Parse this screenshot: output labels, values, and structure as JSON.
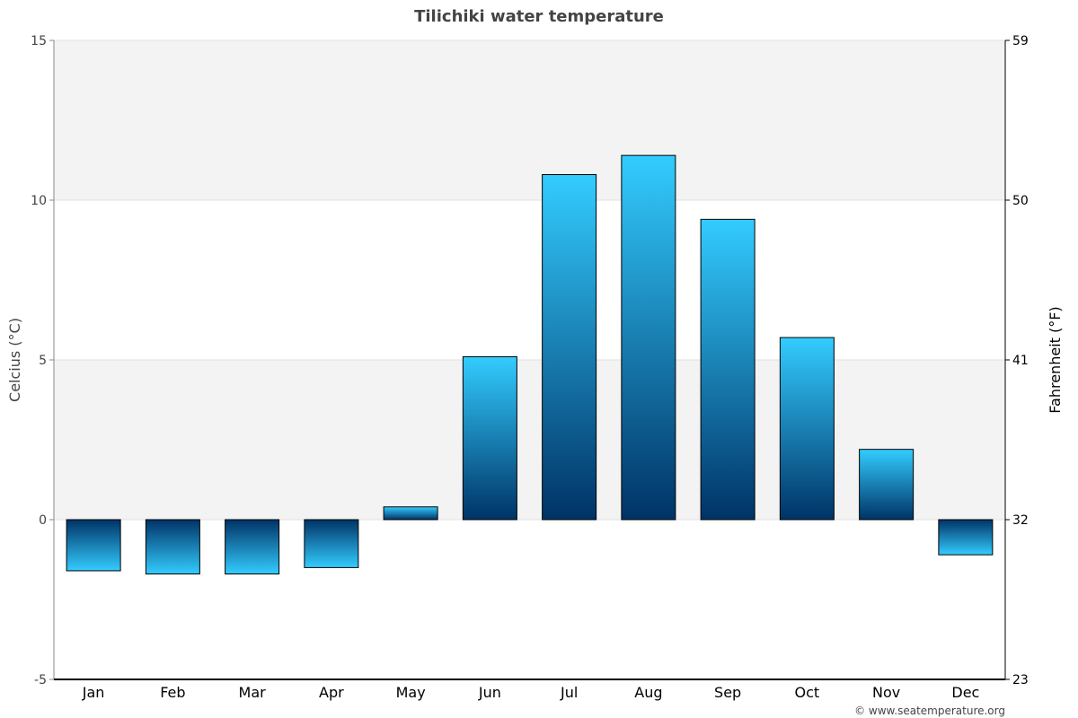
{
  "chart_data": {
    "type": "bar",
    "title": "Tilichiki water temperature",
    "ylabel": "Celcius (°C)",
    "ylabel_right": "Fahrenheit (°F)",
    "ylim": [
      -5,
      15
    ],
    "yticks": [
      -5,
      0,
      5,
      10,
      15
    ],
    "yticks_right": [
      23,
      32,
      41,
      50,
      59
    ],
    "categories": [
      "Jan",
      "Feb",
      "Mar",
      "Apr",
      "May",
      "Jun",
      "Jul",
      "Aug",
      "Sep",
      "Oct",
      "Nov",
      "Dec"
    ],
    "values": [
      -1.6,
      -1.7,
      -1.7,
      -1.5,
      0.4,
      5.1,
      10.8,
      11.4,
      9.4,
      5.7,
      2.2,
      -1.1
    ],
    "colors": {
      "bar_light": "#33ccff",
      "bar_dark": "#003366",
      "band": "#f3f3f3"
    },
    "grid": true,
    "credit": "© www.seatemperature.org"
  }
}
